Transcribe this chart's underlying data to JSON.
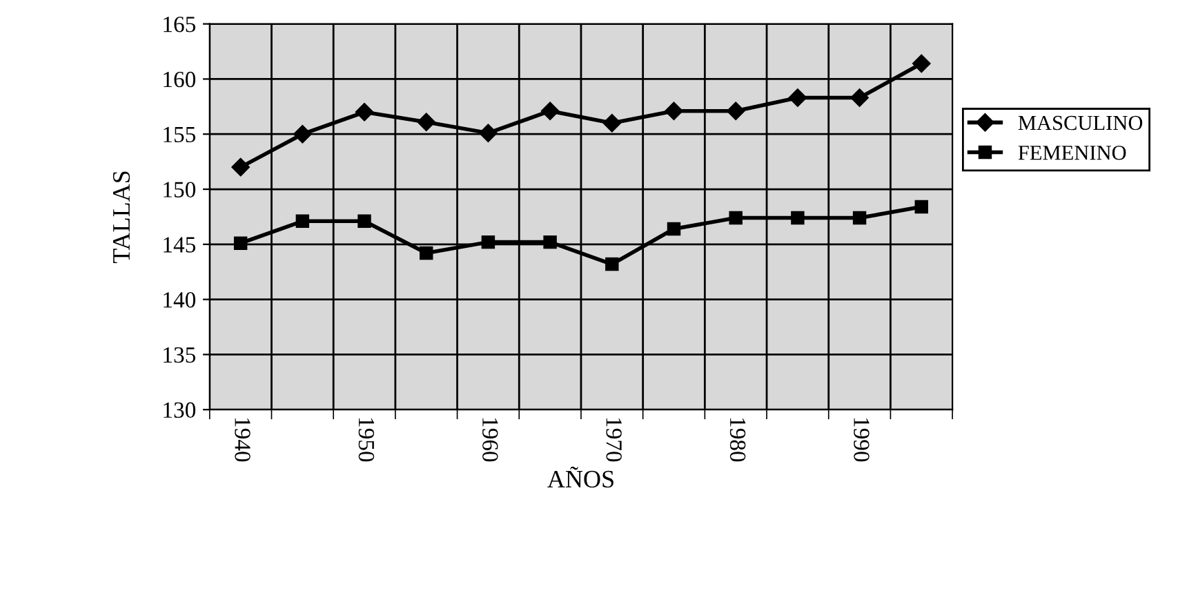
{
  "chart_data": {
    "type": "line",
    "xlabel": "AÑOS",
    "ylabel": "TALLAS",
    "categories": [
      "1940",
      null,
      "1950",
      null,
      "1960",
      null,
      "1970",
      null,
      "1980",
      null,
      "1990",
      null
    ],
    "series": [
      {
        "name": "MASCULINO",
        "color": "#000000",
        "marker": "diamond",
        "values": [
          152.0,
          155.0,
          157.0,
          156.1,
          155.1,
          157.1,
          156.0,
          157.1,
          157.1,
          158.3,
          158.3,
          161.4
        ]
      },
      {
        "name": "FEMENINO",
        "color": "#000000",
        "marker": "square",
        "values": [
          145.1,
          147.1,
          147.1,
          144.2,
          145.2,
          145.2,
          143.2,
          146.4,
          147.4,
          147.4,
          147.4,
          148.4
        ]
      }
    ],
    "ylim": [
      130,
      165
    ],
    "yticks": [
      130,
      135,
      140,
      145,
      150,
      155,
      160,
      165
    ],
    "grid": true,
    "legend": "right",
    "line_style": "solid"
  }
}
